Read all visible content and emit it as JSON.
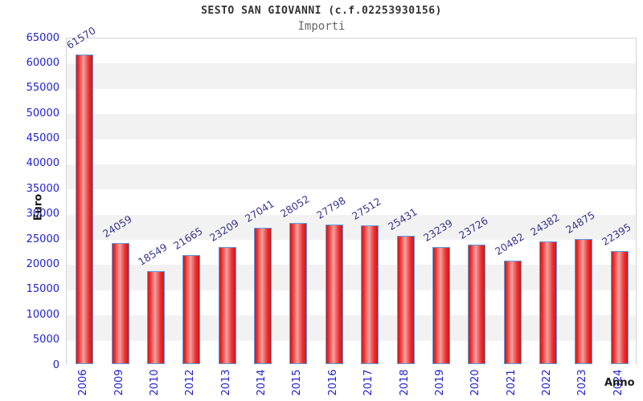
{
  "header": {
    "title": "SESTO SAN GIOVANNI (c.f.02253930156)",
    "subtitle": "Importi"
  },
  "chart_data": {
    "type": "bar",
    "title": "SESTO SAN GIOVANNI (c.f.02253930156)",
    "subtitle": "Importi",
    "xlabel": "Anno",
    "ylabel": "Euro",
    "categories": [
      "2006",
      "2009",
      "2010",
      "2012",
      "2013",
      "2014",
      "2015",
      "2016",
      "2017",
      "2018",
      "2019",
      "2020",
      "2021",
      "2022",
      "2023",
      "2024"
    ],
    "values": [
      61570,
      24059,
      18549,
      21665,
      23209,
      27041,
      28052,
      27798,
      27512,
      25431,
      23239,
      23726,
      20482,
      24382,
      24875,
      22395
    ],
    "ylim": [
      0,
      65000
    ],
    "ytick_step": 5000,
    "ytick_labels": [
      "0",
      "5000",
      "10000",
      "15000",
      "20000",
      "25000",
      "30000",
      "35000",
      "40000",
      "45000",
      "50000",
      "55000",
      "60000",
      "65000"
    ],
    "grid": "alternating-horizontal-bands",
    "legend_position": "none",
    "colors": {
      "bar_border": "#5b9ce0",
      "bar_gradient_edge": "#c41c1c",
      "bar_gradient_main": "#ee2e2e",
      "bar_gradient_center": "#f2a2a2",
      "axis_tick_text": "#2222cc",
      "value_label_text": "#38388e",
      "band_gray": "#f2f2f2",
      "plot_border": "#d4d4d4",
      "title_text": "#333333",
      "subtitle_text": "#666666",
      "axis_name_text": "#1a1a1a"
    }
  }
}
